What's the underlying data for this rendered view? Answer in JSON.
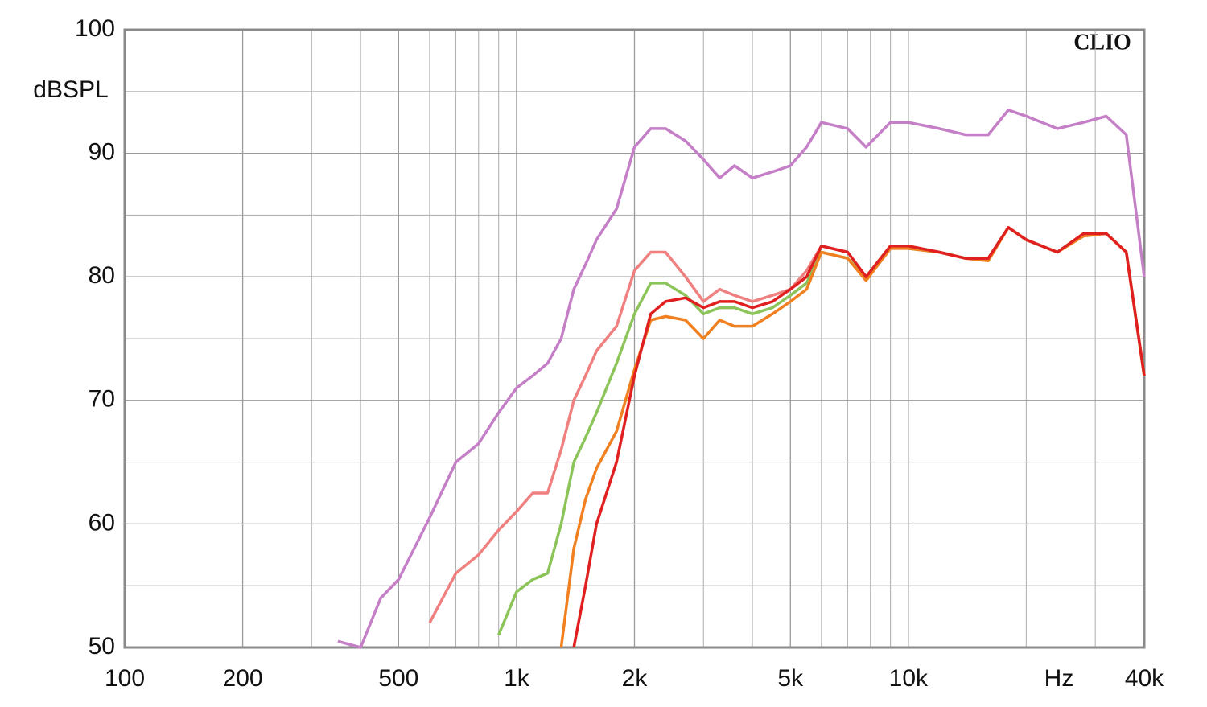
{
  "chart_data": {
    "type": "line",
    "xscale": "log",
    "y_label": "dBSPL",
    "x_label": "Hz",
    "annotation": "CLIO",
    "xlim": [
      100,
      40000
    ],
    "ylim": [
      50,
      100
    ],
    "xticks": [
      100,
      200,
      500,
      {
        "value": 1000,
        "label": "1k"
      },
      {
        "value": 2000,
        "label": "2k"
      },
      {
        "value": 5000,
        "label": "5k"
      },
      {
        "value": 10000,
        "label": "10k"
      },
      {
        "value": 40000,
        "label": "40k"
      }
    ],
    "x_minor_ticks": [
      300,
      400,
      600,
      700,
      800,
      900,
      3000,
      4000,
      6000,
      7000,
      8000,
      9000,
      20000,
      30000
    ],
    "yticks": [
      50,
      60,
      70,
      80,
      90,
      100
    ],
    "y_minor_ticks": [
      55,
      65,
      75,
      85,
      95
    ],
    "grid": true,
    "x": [
      300,
      350,
      400,
      450,
      500,
      600,
      700,
      800,
      900,
      1000,
      1100,
      1200,
      1300,
      1400,
      1500,
      1600,
      1800,
      2000,
      2200,
      2400,
      2700,
      3000,
      3300,
      3600,
      4000,
      4500,
      5000,
      5500,
      6000,
      7000,
      7800,
      9000,
      10000,
      12000,
      14000,
      16000,
      18000,
      20000,
      24000,
      28000,
      32000,
      36000,
      40000
    ],
    "series": [
      {
        "color": "#c47fc7",
        "values": [
          null,
          50.5,
          50,
          54,
          55.5,
          60.5,
          65,
          66.5,
          69,
          71,
          72,
          73,
          75,
          79,
          81,
          83,
          85.5,
          90.5,
          92,
          92,
          91,
          89.5,
          88,
          89,
          88,
          88.5,
          89,
          90.5,
          92.5,
          92,
          90.5,
          92.5,
          92.5,
          92,
          91.5,
          91.5,
          93.5,
          93,
          92,
          92.5,
          93,
          91.5,
          80
        ]
      },
      {
        "color": "#f07f7f",
        "values": [
          null,
          null,
          null,
          null,
          null,
          52,
          56,
          57.5,
          59.5,
          61,
          62.5,
          62.5,
          66,
          70,
          72,
          74,
          76,
          80.5,
          82,
          82,
          80,
          78,
          79,
          78.5,
          78,
          78.5,
          79,
          80.5,
          82.5,
          82,
          80,
          82.5,
          82.5,
          82,
          81.5,
          81.5,
          84,
          83,
          82,
          83.5,
          83.5,
          82,
          72
        ]
      },
      {
        "color": "#8cc45a",
        "values": [
          null,
          null,
          null,
          null,
          null,
          null,
          null,
          null,
          51,
          54.5,
          55.5,
          56,
          60,
          65,
          67,
          69,
          73,
          77,
          79.5,
          79.5,
          78.5,
          77,
          77.5,
          77.5,
          77,
          77.5,
          78.5,
          79.5,
          82,
          81.5,
          80,
          82.5,
          82.3,
          82,
          81.5,
          81.5,
          84,
          83,
          82,
          83.5,
          83.5,
          82,
          72
        ]
      },
      {
        "color": "#f08020",
        "values": [
          null,
          null,
          null,
          null,
          null,
          null,
          null,
          null,
          null,
          null,
          null,
          null,
          50,
          58,
          62,
          64.5,
          67.5,
          72.5,
          76.5,
          76.8,
          76.5,
          75,
          76.5,
          76,
          76,
          77,
          78,
          79,
          82,
          81.5,
          79.7,
          82.3,
          82.3,
          82,
          81.5,
          81.3,
          84,
          83,
          82,
          83.3,
          83.5,
          82,
          72
        ]
      },
      {
        "color": "#e02020",
        "values": [
          null,
          null,
          null,
          null,
          null,
          null,
          null,
          null,
          null,
          null,
          null,
          null,
          null,
          50,
          55,
          60,
          65,
          72,
          77,
          78,
          78.3,
          77.5,
          78,
          78,
          77.5,
          78,
          79,
          80,
          82.5,
          82,
          80,
          82.5,
          82.5,
          82,
          81.5,
          81.5,
          84,
          83,
          82,
          83.5,
          83.5,
          82,
          72
        ]
      }
    ]
  }
}
